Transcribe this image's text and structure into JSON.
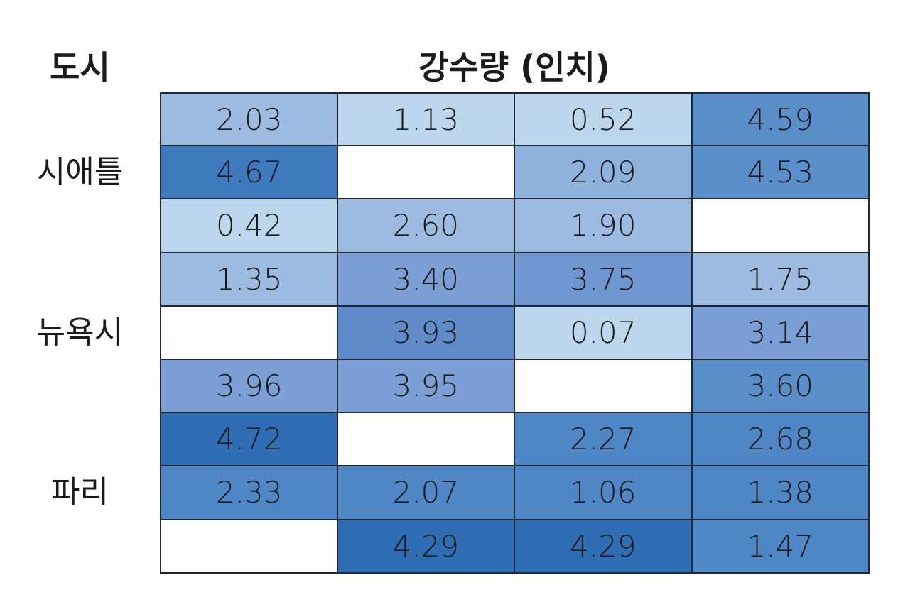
{
  "header": {
    "city": "도시",
    "values": "강수량 (인치)"
  },
  "cities": [
    {
      "name": "시애틀",
      "row": 1
    },
    {
      "name": "뉴욕시",
      "row": 4
    },
    {
      "name": "파리",
      "row": 7
    }
  ],
  "table": {
    "rows": [
      [
        "2.03",
        "1.13",
        "0.52",
        "4.59"
      ],
      [
        "4.67",
        null,
        "2.09",
        "4.53"
      ],
      [
        "0.42",
        "2.60",
        "1.90",
        null
      ],
      [
        "1.35",
        "3.40",
        "3.75",
        "1.75"
      ],
      [
        null,
        "3.93",
        "0.07",
        "3.14"
      ],
      [
        "3.96",
        "3.95",
        null,
        "3.60"
      ],
      [
        "4.72",
        null,
        "2.27",
        "2.68"
      ],
      [
        "2.33",
        "2.07",
        "1.06",
        "1.38"
      ],
      [
        null,
        "4.29",
        "4.29",
        "1.47"
      ]
    ],
    "colors": [
      [
        "#9dbbe0",
        "#bcd6ee",
        "#bcd6ee",
        "#5b8fc9"
      ],
      [
        "#3f7abf",
        "#ffffff",
        "#8fb2dc",
        "#5b8fc9"
      ],
      [
        "#bcd6ee",
        "#9dbbe0",
        "#9dbbe0",
        "#ffffff"
      ],
      [
        "#9dbbe0",
        "#7b9fd4",
        "#7096d0",
        "#9dbbe0"
      ],
      [
        "#ffffff",
        "#5f8cc9",
        "#bcd6ee",
        "#7b9fd4"
      ],
      [
        "#7b9fd4",
        "#7b9fd4",
        "#ffffff",
        "#5b8fc9"
      ],
      [
        "#2f6db5",
        "#ffffff",
        "#4f87c6",
        "#4f87c6"
      ],
      [
        "#4f87c6",
        "#4f87c6",
        "#4f87c6",
        "#4f87c6"
      ],
      [
        "#ffffff",
        "#2f6db5",
        "#2f6db5",
        "#4f87c6"
      ]
    ]
  }
}
